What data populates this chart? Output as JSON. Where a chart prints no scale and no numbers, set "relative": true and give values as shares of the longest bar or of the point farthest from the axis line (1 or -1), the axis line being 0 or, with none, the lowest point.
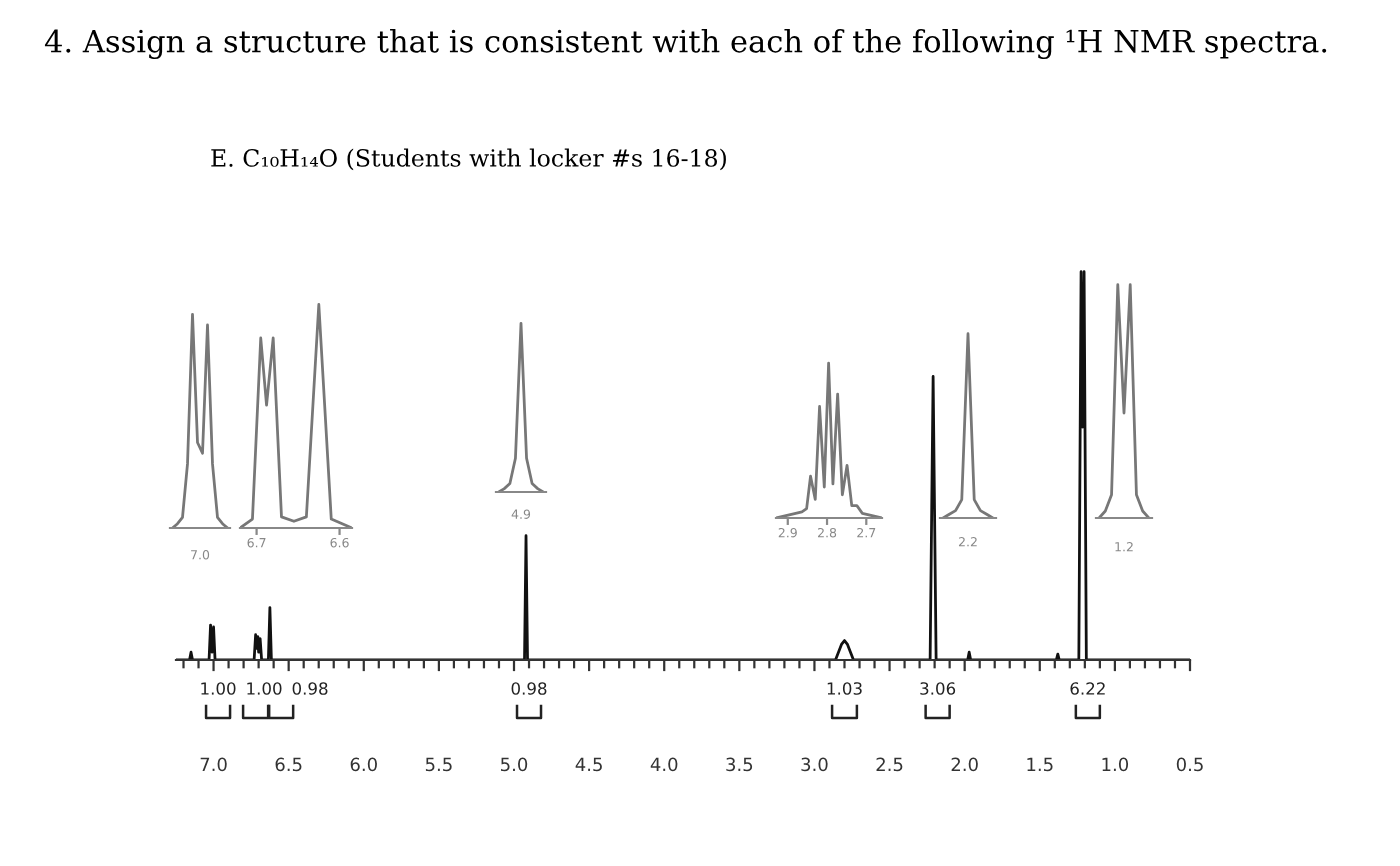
{
  "chart_data": [
    {
      "type": "line",
      "title": "4. Assign a structure that is consistent with each of the following ¹H NMR spectra.",
      "subtitle": "E. C₁₀H₁₄O (Students with locker #s 16-18)",
      "relative": true,
      "xlim": [
        7.25,
        0.5
      ],
      "xticks": [
        {
          "value": 7.2,
          "label": null
        },
        {
          "value": 7.1,
          "label": null
        },
        {
          "value": 7.0,
          "label": "7.0"
        },
        {
          "value": 6.9,
          "label": null
        },
        {
          "value": 6.8,
          "label": null
        },
        {
          "value": 6.7,
          "label": null
        },
        {
          "value": 6.6,
          "label": null
        },
        {
          "value": 6.5,
          "label": "6.5"
        },
        {
          "value": 6.4,
          "label": null
        },
        {
          "value": 6.3,
          "label": null
        },
        {
          "value": 6.2,
          "label": null
        },
        {
          "value": 6.1,
          "label": null
        },
        {
          "value": 6.0,
          "label": "6.0"
        },
        {
          "value": 5.9,
          "label": null
        },
        {
          "value": 5.8,
          "label": null
        },
        {
          "value": 5.7,
          "label": null
        },
        {
          "value": 5.6,
          "label": null
        },
        {
          "value": 5.5,
          "label": "5.5"
        },
        {
          "value": 5.4,
          "label": null
        },
        {
          "value": 5.3,
          "label": null
        },
        {
          "value": 5.2,
          "label": null
        },
        {
          "value": 5.1,
          "label": null
        },
        {
          "value": 5.0,
          "label": "5.0"
        },
        {
          "value": 4.9,
          "label": null
        },
        {
          "value": 4.8,
          "label": null
        },
        {
          "value": 4.7,
          "label": null
        },
        {
          "value": 4.6,
          "label": null
        },
        {
          "value": 4.5,
          "label": "4.5"
        },
        {
          "value": 4.4,
          "label": null
        },
        {
          "value": 4.3,
          "label": null
        },
        {
          "value": 4.2,
          "label": null
        },
        {
          "value": 4.1,
          "label": null
        },
        {
          "value": 4.0,
          "label": "4.0"
        },
        {
          "value": 3.9,
          "label": null
        },
        {
          "value": 3.8,
          "label": null
        },
        {
          "value": 3.7,
          "label": null
        },
        {
          "value": 3.6,
          "label": null
        },
        {
          "value": 3.5,
          "label": "3.5"
        },
        {
          "value": 3.4,
          "label": null
        },
        {
          "value": 3.3,
          "label": null
        },
        {
          "value": 3.2,
          "label": null
        },
        {
          "value": 3.1,
          "label": null
        },
        {
          "value": 3.0,
          "label": "3.0"
        },
        {
          "value": 2.9,
          "label": null
        },
        {
          "value": 2.8,
          "label": null
        },
        {
          "value": 2.7,
          "label": null
        },
        {
          "value": 2.6,
          "label": null
        },
        {
          "value": 2.5,
          "label": "2.5"
        },
        {
          "value": 2.4,
          "label": null
        },
        {
          "value": 2.3,
          "label": null
        },
        {
          "value": 2.2,
          "label": null
        },
        {
          "value": 2.1,
          "label": null
        },
        {
          "value": 2.0,
          "label": "2.0"
        },
        {
          "value": 1.9,
          "label": null
        },
        {
          "value": 1.8,
          "label": null
        },
        {
          "value": 1.7,
          "label": null
        },
        {
          "value": 1.6,
          "label": null
        },
        {
          "value": 1.5,
          "label": "1.5"
        },
        {
          "value": 1.4,
          "label": null
        },
        {
          "value": 1.3,
          "label": null
        },
        {
          "value": 1.2,
          "label": null
        },
        {
          "value": 1.1,
          "label": null
        },
        {
          "value": 1.0,
          "label": "1.0"
        },
        {
          "value": 0.9,
          "label": null
        },
        {
          "value": 0.8,
          "label": null
        },
        {
          "value": 0.7,
          "label": null
        },
        {
          "value": 0.6,
          "label": null
        },
        {
          "value": 0.5,
          "label": "0.5"
        }
      ],
      "annotations": [
        {
          "text": "1.00",
          "x": 6.97,
          "y": 0
        },
        {
          "text": "1.00",
          "x": 6.72,
          "y": 0.065
        },
        {
          "text": "0.98",
          "x": 6.55,
          "y": 0
        },
        {
          "text": "0.98",
          "x": 4.9,
          "y": 0
        },
        {
          "text": "1.03",
          "x": 2.8,
          "y": 0.05
        },
        {
          "text": "3.06",
          "x": 2.18,
          "y": 0
        },
        {
          "text": "6.22",
          "x": 1.18,
          "y": 0
        }
      ],
      "series": [
        {
          "color": "#111111",
          "x": [
            7.25,
            7.16,
            7.15,
            7.14,
            7.03,
            7.02,
            7.01,
            7.0,
            6.99,
            6.73,
            6.72,
            6.715,
            6.705,
            6.7,
            6.69,
            6.68,
            6.635,
            6.625,
            6.615,
            4.93,
            4.92,
            4.91,
            2.86,
            2.84,
            2.82,
            2.8,
            2.78,
            2.76,
            2.74,
            2.23,
            2.21,
            2.19,
            1.98,
            1.97,
            1.96,
            1.39,
            1.38,
            1.37,
            1.24,
            1.225,
            1.215,
            1.205,
            1.19,
            0.5
          ],
          "values": [
            0,
            0,
            0.02,
            0,
            0,
            0.09,
            0.02,
            0.085,
            0,
            0,
            0.065,
            0.03,
            0.06,
            0.02,
            0.055,
            0,
            0,
            0.135,
            0,
            0,
            0.32,
            0,
            0,
            0.02,
            0.04,
            0.05,
            0.04,
            0.02,
            0,
            0,
            0.73,
            0,
            0,
            0.02,
            0,
            0,
            0.015,
            0,
            0,
            1.0,
            0.6,
            1.0,
            0,
            0
          ]
        }
      ]
    },
    {
      "type": "line",
      "relative": true,
      "categories": [
        null,
        null,
        null,
        null,
        null,
        null,
        null,
        null,
        null,
        null,
        null,
        null
      ],
      "annotations": [
        "7.0"
      ],
      "series": [
        {
          "color": "#777777",
          "values": [
            0,
            0.02,
            0.05,
            0.3,
            1.0,
            0.4,
            0.35,
            0.95,
            0.3,
            0.05,
            0.02,
            0
          ]
        }
      ]
    },
    {
      "type": "line",
      "relative": true,
      "xlim": [
        6.72,
        6.585
      ],
      "xticks": [
        {
          "value": 6.7,
          "label": "6.7"
        },
        {
          "value": 6.6,
          "label": "6.6"
        }
      ],
      "series": [
        {
          "color": "#777777",
          "x": [
            6.72,
            6.705,
            6.695,
            6.688,
            6.68,
            6.67,
            6.655,
            6.64,
            6.625,
            6.61,
            6.585
          ],
          "values": [
            0,
            0.04,
            0.85,
            0.55,
            0.85,
            0.05,
            0.03,
            0.05,
            1.0,
            0.04,
            0
          ]
        }
      ]
    },
    {
      "type": "line",
      "relative": true,
      "categories": [
        null,
        null,
        null,
        null,
        null,
        null,
        null,
        null,
        null
      ],
      "annotations": [
        "4.9"
      ],
      "series": [
        {
          "color": "#777777",
          "values": [
            0,
            0.02,
            0.05,
            0.2,
            1.0,
            0.2,
            0.05,
            0.02,
            0
          ]
        }
      ]
    },
    {
      "type": "line",
      "relative": true,
      "xlim": [
        2.93,
        2.66
      ],
      "xticks": [
        {
          "value": 2.9,
          "label": "2.9"
        },
        {
          "value": 2.8,
          "label": "2.8"
        },
        {
          "value": 2.7,
          "label": "2.7"
        }
      ],
      "series": [
        {
          "color": "#777777",
          "x": [
            2.93,
            2.88,
            2.864,
            2.852,
            2.842,
            2.83,
            2.819,
            2.807,
            2.796,
            2.785,
            2.773,
            2.761,
            2.749,
            2.737,
            2.724,
            2.71,
            2.66
          ],
          "values": [
            0,
            0.03,
            0.04,
            0.06,
            0.27,
            0.12,
            0.72,
            0.2,
            1.0,
            0.22,
            0.8,
            0.15,
            0.34,
            0.08,
            0.08,
            0.03,
            0
          ]
        }
      ]
    },
    {
      "type": "line",
      "relative": true,
      "categories": [
        null,
        null,
        null,
        null,
        null,
        null,
        null,
        null,
        null
      ],
      "annotations": [
        "2.2"
      ],
      "series": [
        {
          "color": "#777777",
          "values": [
            0,
            0.02,
            0.04,
            0.1,
            1.0,
            0.1,
            0.04,
            0.02,
            0
          ]
        }
      ]
    },
    {
      "type": "line",
      "relative": true,
      "categories": [
        null,
        null,
        null,
        null,
        null,
        null,
        null,
        null,
        null
      ],
      "annotations": [
        "1.2"
      ],
      "series": [
        {
          "color": "#777777",
          "values": [
            0,
            0.03,
            0.1,
            1.0,
            0.45,
            1.0,
            0.1,
            0.03,
            0
          ]
        }
      ]
    }
  ]
}
